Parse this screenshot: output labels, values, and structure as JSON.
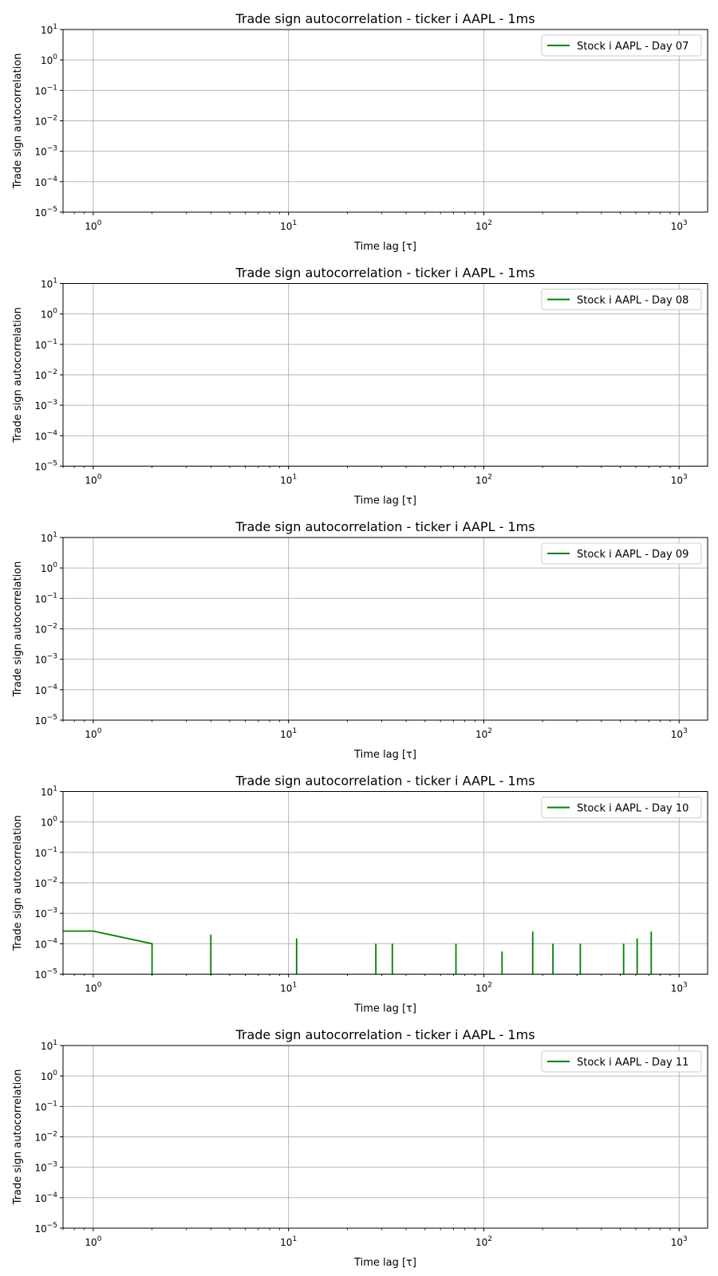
{
  "line_color": "#008000",
  "grid_color": "#b0b0b0",
  "chart_data": [
    {
      "type": "line",
      "title": "Trade sign autocorrelation - ticker i AAPL - 1ms",
      "xlabel": "Time lag [τ]",
      "ylabel": "Trade sign autocorrelation",
      "xscale": "log",
      "yscale": "log",
      "xlim": [
        0.7,
        1400
      ],
      "ylim": [
        1e-05,
        10
      ],
      "x_ticks": [
        "10^0",
        "10^1",
        "10^2",
        "10^3"
      ],
      "y_ticks": [
        "10^-5",
        "10^-4",
        "10^-3",
        "10^-2",
        "10^-1",
        "10^0",
        "10^1"
      ],
      "grid": true,
      "legend_position": "top-right",
      "series": [
        {
          "name": "Stock i AAPL - Day 07",
          "x": [],
          "y": []
        }
      ]
    },
    {
      "type": "line",
      "title": "Trade sign autocorrelation - ticker i AAPL - 1ms",
      "xlabel": "Time lag [τ]",
      "ylabel": "Trade sign autocorrelation",
      "xscale": "log",
      "yscale": "log",
      "xlim": [
        0.7,
        1400
      ],
      "ylim": [
        1e-05,
        10
      ],
      "x_ticks": [
        "10^0",
        "10^1",
        "10^2",
        "10^3"
      ],
      "y_ticks": [
        "10^-5",
        "10^-4",
        "10^-3",
        "10^-2",
        "10^-1",
        "10^0",
        "10^1"
      ],
      "grid": true,
      "legend_position": "top-right",
      "series": [
        {
          "name": "Stock i AAPL - Day 08",
          "x": [],
          "y": []
        }
      ]
    },
    {
      "type": "line",
      "title": "Trade sign autocorrelation - ticker i AAPL - 1ms",
      "xlabel": "Time lag [τ]",
      "ylabel": "Trade sign autocorrelation",
      "xscale": "log",
      "yscale": "log",
      "xlim": [
        0.7,
        1400
      ],
      "ylim": [
        1e-05,
        10
      ],
      "x_ticks": [
        "10^0",
        "10^1",
        "10^2",
        "10^3"
      ],
      "y_ticks": [
        "10^-5",
        "10^-4",
        "10^-3",
        "10^-2",
        "10^-1",
        "10^0",
        "10^1"
      ],
      "grid": true,
      "legend_position": "top-right",
      "series": [
        {
          "name": "Stock i AAPL - Day 09",
          "x": [],
          "y": []
        }
      ]
    },
    {
      "type": "line",
      "title": "Trade sign autocorrelation - ticker i AAPL - 1ms",
      "xlabel": "Time lag [τ]",
      "ylabel": "Trade sign autocorrelation",
      "xscale": "log",
      "yscale": "log",
      "xlim": [
        0.7,
        1400
      ],
      "ylim": [
        1e-05,
        10
      ],
      "x_ticks": [
        "10^0",
        "10^1",
        "10^2",
        "10^3"
      ],
      "y_ticks": [
        "10^-5",
        "10^-4",
        "10^-3",
        "10^-2",
        "10^-1",
        "10^0",
        "10^1"
      ],
      "grid": true,
      "legend_position": "top-right",
      "series": [
        {
          "name": "Stock i AAPL - Day 10",
          "x": [
            0,
            1,
            2,
            4,
            11,
            28,
            34,
            72,
            124,
            178,
            226,
            312,
            520,
            610,
            720
          ],
          "y": [
            0.00026,
            0.00026,
            0.0001,
            0.0002,
            0.00015,
            0.0001,
            0.0001,
            0.0001,
            5.5e-05,
            0.00025,
            0.0001,
            0.0001,
            0.0001,
            0.00015,
            0.00025
          ]
        }
      ]
    },
    {
      "type": "line",
      "title": "Trade sign autocorrelation - ticker i AAPL - 1ms",
      "xlabel": "Time lag [τ]",
      "ylabel": "Trade sign autocorrelation",
      "xscale": "log",
      "yscale": "log",
      "xlim": [
        0.7,
        1400
      ],
      "ylim": [
        1e-05,
        10
      ],
      "x_ticks": [
        "10^0",
        "10^1",
        "10^2",
        "10^3"
      ],
      "y_ticks": [
        "10^-5",
        "10^-4",
        "10^-3",
        "10^-2",
        "10^-1",
        "10^0",
        "10^1"
      ],
      "grid": true,
      "legend_position": "top-right",
      "series": [
        {
          "name": "Stock i AAPL - Day 11",
          "x": [],
          "y": []
        }
      ]
    }
  ]
}
